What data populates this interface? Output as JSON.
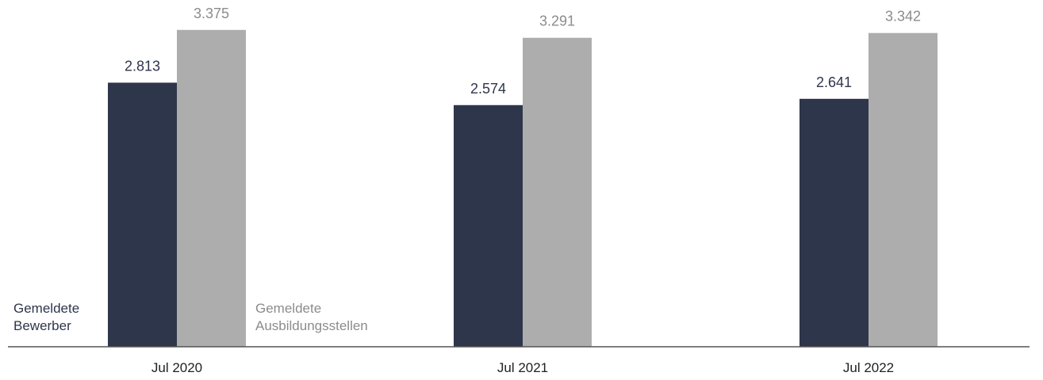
{
  "chart_data": {
    "type": "bar",
    "categories": [
      "Jul 2020",
      "Jul 2021",
      "Jul 2022"
    ],
    "series": [
      {
        "name": "Gemeldete Bewerber",
        "name_lines": [
          "Gemeldete",
          "Bewerber"
        ],
        "values": [
          2813,
          2574,
          2641
        ],
        "labels": [
          "2.813",
          "2.574",
          "2.641"
        ],
        "color": "#2e364c",
        "label_color": "#2e364c"
      },
      {
        "name": "Gemeldete Ausbildungsstellen",
        "name_lines": [
          "Gemeldete",
          "Ausbildungsstellen"
        ],
        "values": [
          3375,
          3291,
          3342
        ],
        "labels": [
          "3.375",
          "3.291",
          "3.342"
        ],
        "color": "#adadad",
        "label_color": "#8c8c8c"
      }
    ],
    "title": "",
    "xlabel": "",
    "ylabel": "",
    "ylim": [
      0,
      3525
    ],
    "grid": false,
    "legend": "inline-bottom"
  }
}
